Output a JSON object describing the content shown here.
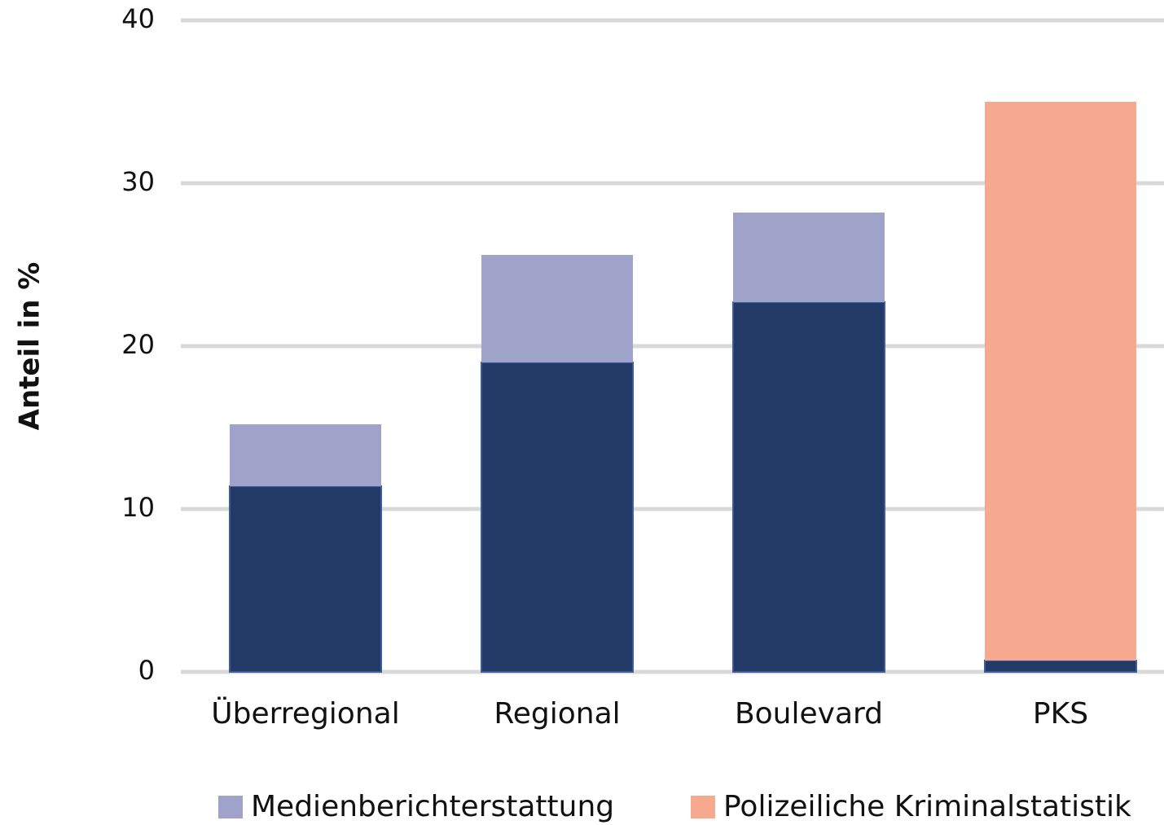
{
  "chart_data": {
    "type": "stacked_bar",
    "y_label": "Anteil in %",
    "categories": [
      "Überregional",
      "Regional",
      "Boulevard",
      "PKS"
    ],
    "series": [
      {
        "color": "#233a66",
        "values": [
          11.4,
          19.0,
          22.7,
          0.7
        ]
      },
      {
        "name": "Medienberichterstattung",
        "color": "#9fa2c9",
        "values": [
          3.8,
          6.6,
          5.5,
          null
        ]
      },
      {
        "name": "Polizeiliche Kriminalstatistik",
        "color": "#f7a98f",
        "values": [
          null,
          null,
          null,
          34.3
        ]
      }
    ],
    "ylim": [
      0,
      40
    ],
    "yticks": [
      0,
      10,
      20,
      30,
      40
    ],
    "grid": true
  }
}
